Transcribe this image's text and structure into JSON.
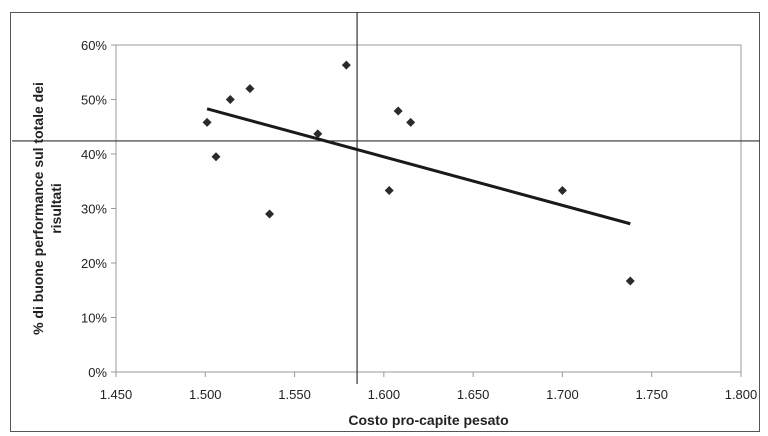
{
  "chart_data": {
    "type": "scatter",
    "title": "",
    "xlabel": "Costo pro-capite pesato",
    "ylabel_lines": [
      "% di buone performance sul totale dei",
      "risultati"
    ],
    "xlim": [
      1450,
      1800
    ],
    "ylim": [
      0,
      0.6
    ],
    "x_ticks": [
      1450,
      1500,
      1550,
      1600,
      1650,
      1700,
      1750,
      1800
    ],
    "x_tick_labels": [
      "1.450",
      "1.500",
      "1.550",
      "1.600",
      "1.650",
      "1.700",
      "1.750",
      "1.800"
    ],
    "y_ticks": [
      0,
      0.1,
      0.2,
      0.3,
      0.4,
      0.5,
      0.6
    ],
    "y_tick_labels": [
      "0%",
      "10%",
      "20%",
      "30%",
      "40%",
      "50%",
      "60%"
    ],
    "grid": false,
    "legend": "none",
    "points": [
      {
        "x": 1501,
        "y": 0.458
      },
      {
        "x": 1506,
        "y": 0.395
      },
      {
        "x": 1514,
        "y": 0.5
      },
      {
        "x": 1525,
        "y": 0.52
      },
      {
        "x": 1536,
        "y": 0.29
      },
      {
        "x": 1563,
        "y": 0.437
      },
      {
        "x": 1579,
        "y": 0.563
      },
      {
        "x": 1603,
        "y": 0.333
      },
      {
        "x": 1608,
        "y": 0.479
      },
      {
        "x": 1615,
        "y": 0.458
      },
      {
        "x": 1700,
        "y": 0.333
      },
      {
        "x": 1738,
        "y": 0.167
      }
    ],
    "trendline": {
      "x": [
        1501,
        1738
      ],
      "y": [
        0.483,
        0.272
      ]
    },
    "reference_lines": {
      "vertical_x": 1585,
      "horizontal_y": 0.424
    },
    "colors": {
      "marker": "#2b2b2b",
      "line": "#1a1a1a",
      "reference": "#333333",
      "axis": "#999999"
    }
  }
}
